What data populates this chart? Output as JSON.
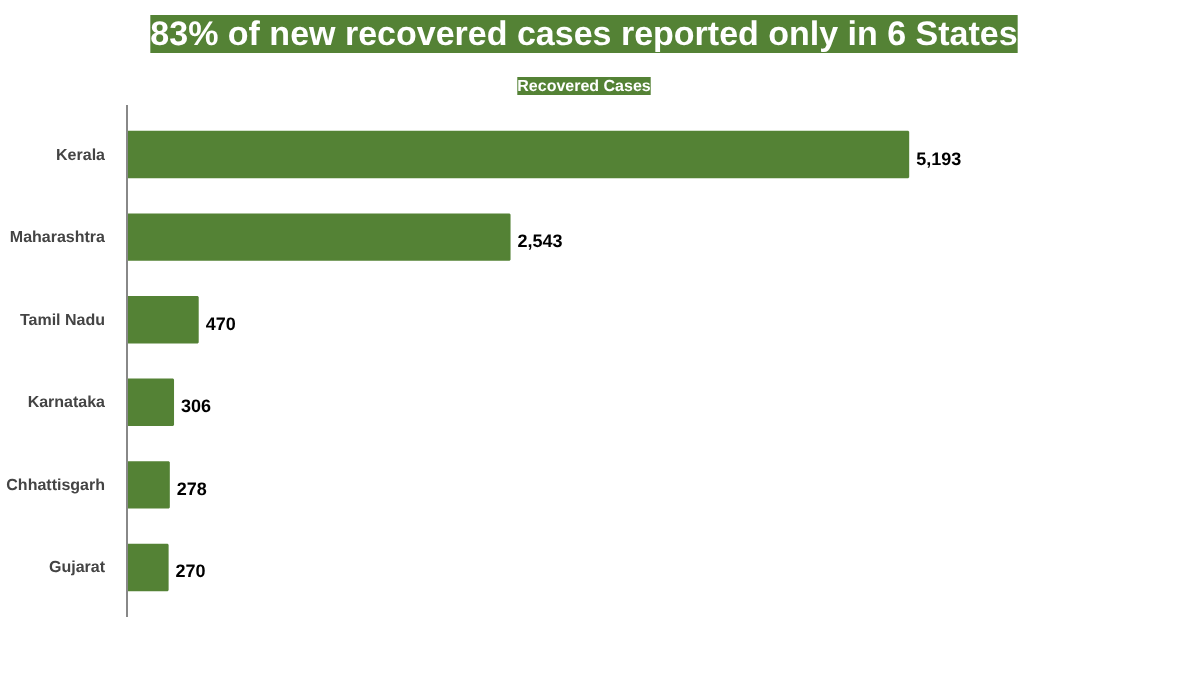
{
  "chart_data": {
    "type": "bar",
    "orientation": "horizontal",
    "title": "83% of new recovered cases reported only in 6 States",
    "subtitle": "Recovered Cases",
    "categories": [
      "Kerala",
      "Maharashtra",
      "Tamil Nadu",
      "Karnataka",
      "Chhattisgarh",
      "Gujarat"
    ],
    "values": [
      5193,
      2543,
      470,
      306,
      278,
      270
    ],
    "color": "#548235",
    "data_labels": true,
    "value_labels": [
      "5,193",
      "2,543",
      "470",
      "306",
      "278",
      "270"
    ],
    "grid": false
  }
}
